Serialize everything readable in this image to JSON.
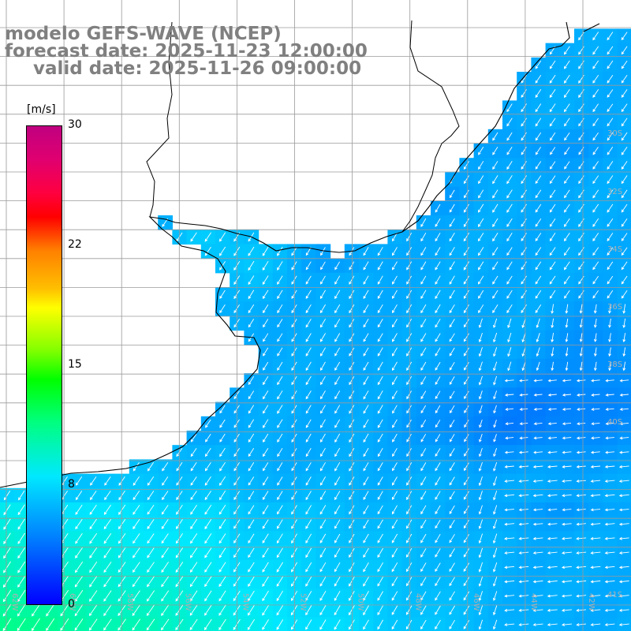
{
  "title": {
    "model": "modelo GEFS-WAVE (NCEP)",
    "forecast": "forecast date: 2025-11-23 12:00:00",
    "valid": "valid date: 2025-11-26 09:00:00"
  },
  "colorbar": {
    "unit": "[m/s]",
    "ticks": [
      "30",
      "22",
      "15",
      "8",
      "0"
    ],
    "colors": [
      "#0000ff",
      "#0080ff",
      "#00e8ff",
      "#00ff80",
      "#00ff00",
      "#ffff00",
      "#ff8000",
      "#ff0000",
      "#c00080"
    ]
  },
  "map": {
    "land_color": "#ffffff",
    "grid_color": "#9a9a9a",
    "coast_color": "#000000",
    "arrow_color": "#ffffff",
    "lat_labels": [
      "30S",
      "32S",
      "34S",
      "36S",
      "38S",
      "40S",
      "41S"
    ],
    "lon_labels": [
      "62W",
      "60W",
      "58W",
      "56W",
      "54W",
      "52W",
      "50W",
      "48W",
      "46W",
      "44W",
      "42W",
      "41W"
    ]
  },
  "chart_data": {
    "type": "heatmap",
    "variable": "wind speed",
    "unit": "m/s",
    "colorbar_range": [
      0,
      30
    ],
    "colorbar_ticks": [
      0,
      8,
      15,
      22,
      30
    ],
    "field_summary": {
      "north_east_shelf": "6-7 m/s",
      "central_offshore": "5-6 m/s",
      "east_minimum": "4-5 m/s",
      "south_west": "9-10 m/s"
    },
    "wind_direction_summary": "southwestward near coast, southward in east, westward in far east/south bands"
  }
}
